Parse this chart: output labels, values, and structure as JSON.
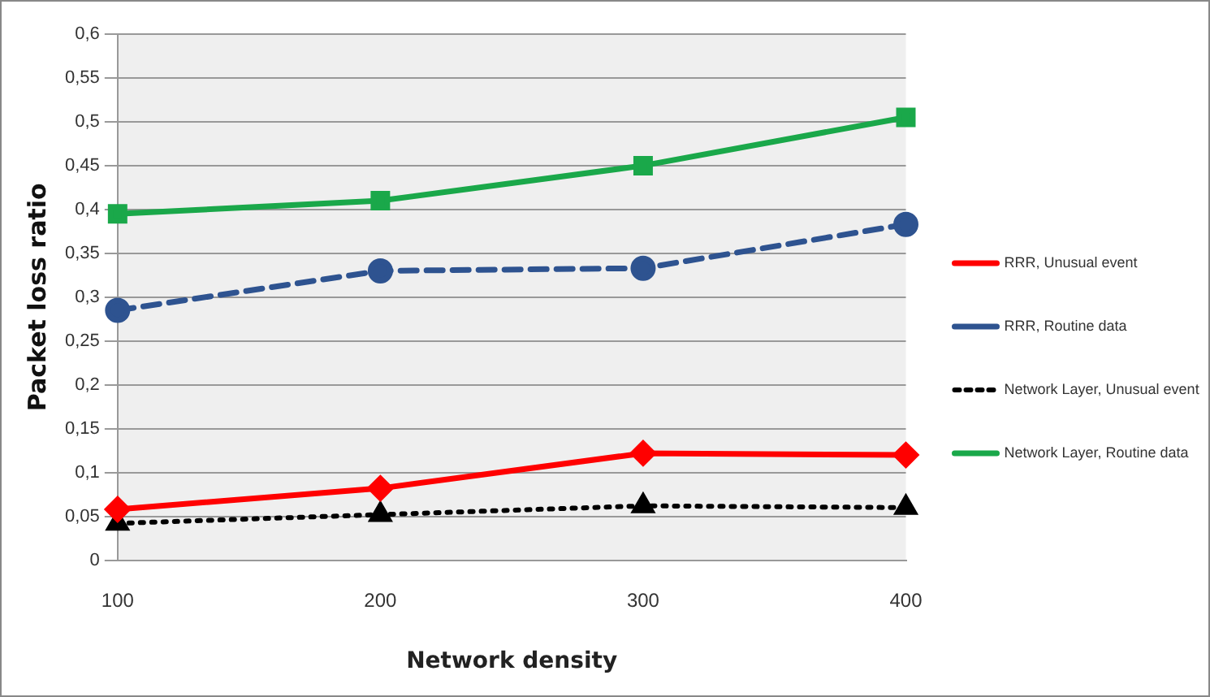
{
  "chart_data": {
    "type": "line",
    "xlabel": "Network density",
    "ylabel": "Packet loss ratio",
    "categories": [
      "100",
      "200",
      "300",
      "400"
    ],
    "ylim": [
      0,
      0.6
    ],
    "yticks": [
      {
        "value": 0,
        "label": "0"
      },
      {
        "value": 0.05,
        "label": "0,05"
      },
      {
        "value": 0.1,
        "label": "0,1"
      },
      {
        "value": 0.15,
        "label": "0,15"
      },
      {
        "value": 0.2,
        "label": "0,2"
      },
      {
        "value": 0.25,
        "label": "0,25"
      },
      {
        "value": 0.3,
        "label": "0,3"
      },
      {
        "value": 0.35,
        "label": "0,35"
      },
      {
        "value": 0.4,
        "label": "0,4"
      },
      {
        "value": 0.45,
        "label": "0,45"
      },
      {
        "value": 0.5,
        "label": "0,5"
      },
      {
        "value": 0.55,
        "label": "0,55"
      },
      {
        "value": 0.6,
        "label": "0,6"
      }
    ],
    "grid": "y",
    "legend": "right",
    "series": [
      {
        "name": "RRR, Unusual event",
        "color": "#ff0000",
        "marker": "diamond",
        "line_style": "solid",
        "values": [
          0.058,
          0.082,
          0.122,
          0.12
        ]
      },
      {
        "name": "RRR, Routine data",
        "color": "#2e5390",
        "marker": "circle",
        "line_style": "dashed",
        "values": [
          0.285,
          0.33,
          0.333,
          0.383
        ]
      },
      {
        "name": "Network Layer, Unusual event",
        "color": "#000000",
        "marker": "triangle",
        "line_style": "dotted",
        "values": [
          0.042,
          0.052,
          0.062,
          0.06
        ]
      },
      {
        "name": "Network Layer, Routine data",
        "color": "#1aa84a",
        "marker": "square",
        "line_style": "solid",
        "values": [
          0.395,
          0.41,
          0.45,
          0.505
        ]
      }
    ]
  }
}
